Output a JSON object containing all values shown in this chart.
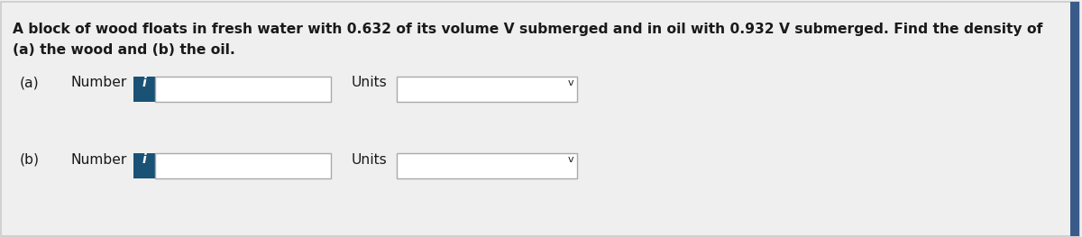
{
  "background_color": "#efefef",
  "border_color": "#cccccc",
  "title_text_line1": "A block of wood floats in fresh water with 0.632 of its volume V submerged and in oil with 0.932 V submerged. Find the density of",
  "title_text_line2": "(a) the wood and (b) the oil.",
  "label_a": "(a)",
  "label_b": "(b)",
  "number_label": "Number",
  "units_label": "Units",
  "info_box_color": "#1a5276",
  "info_text_color": "#ffffff",
  "info_char": "i",
  "input_box_color": "#ffffff",
  "input_box_border": "#aaaaaa",
  "units_box_color": "#ffffff",
  "units_box_border": "#aaaaaa",
  "dropdown_arrow": "v",
  "text_color": "#1a1a1a",
  "font_size_title": 11.2,
  "font_size_label": 11.2,
  "right_border_color": "#3a5a8a"
}
